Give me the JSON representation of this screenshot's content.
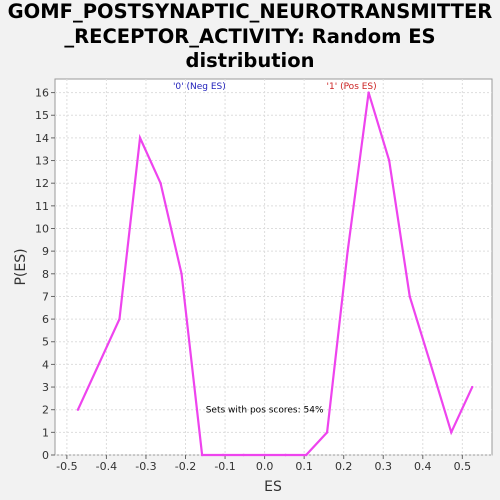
{
  "title_lines": [
    "GOMF_POSTSYNAPTIC_NEUROTRANSMITTER",
    "_RECEPTOR_ACTIVITY: Random ES",
    "distribution"
  ],
  "chart_data": {
    "type": "line",
    "title": "GOMF_POSTSYNAPTIC_NEUROTRANSMITTER_RECEPTOR_ACTIVITY: Random ES distribution",
    "xlabel": "ES",
    "ylabel": "P(ES)",
    "xlim": [
      -0.53,
      0.575
    ],
    "ylim": [
      0,
      16.6
    ],
    "xticks": [
      -0.5,
      -0.4,
      -0.3,
      -0.2,
      -0.1,
      0.0,
      0.1,
      0.2,
      0.3,
      0.4,
      0.5
    ],
    "xtick_labels": [
      "-0.5",
      "-0.4",
      "-0.3",
      "-0.2",
      "-0.1",
      "0.0",
      "0.1",
      "0.2",
      "0.3",
      "0.4",
      "0.5"
    ],
    "yticks": [
      0,
      1,
      2,
      3,
      4,
      5,
      6,
      7,
      8,
      9,
      10,
      11,
      12,
      13,
      14,
      15,
      16
    ],
    "grid": true,
    "series": [
      {
        "color": "#ee44ee",
        "x": [
          -0.472,
          -0.367,
          -0.315,
          -0.263,
          -0.21,
          -0.158,
          -0.105,
          -0.053,
          0.0,
          0.053,
          0.105,
          0.158,
          0.21,
          0.263,
          0.315,
          0.367,
          0.42,
          0.472,
          0.525
        ],
        "y": [
          2,
          6,
          14,
          12,
          8,
          0,
          0,
          0,
          0,
          0,
          0,
          1,
          9,
          16,
          13,
          7,
          4,
          1,
          3
        ]
      }
    ],
    "annotations": [
      {
        "text": "'0' (Neg ES)",
        "color": "#2222bb",
        "x": -0.165,
        "y": 16.3
      },
      {
        "text": "'1' (Pos ES)",
        "color": "#cc2222",
        "x": 0.22,
        "y": 16.3
      },
      {
        "text": "Sets with pos scores: 54%",
        "color": "#000000",
        "x": 0.0,
        "y": 2.0
      }
    ]
  }
}
